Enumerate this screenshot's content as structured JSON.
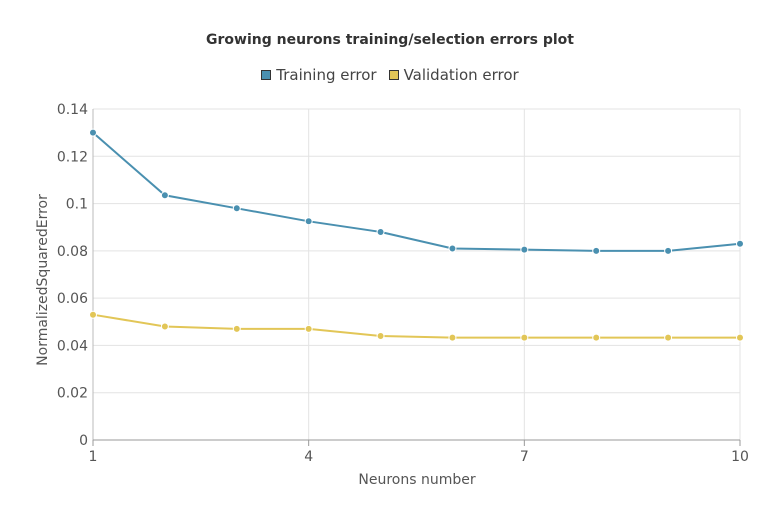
{
  "chart_data": {
    "type": "line",
    "title": "Growing neurons training/selection errors plot",
    "xlabel": "Neurons number",
    "ylabel": "NormalizedSquaredError",
    "x": [
      1,
      2,
      3,
      4,
      5,
      6,
      7,
      8,
      9,
      10
    ],
    "xlim": [
      1,
      10
    ],
    "ylim": [
      0,
      0.14
    ],
    "xticks": [
      "1",
      "4",
      "7",
      "10"
    ],
    "yticks": [
      "0",
      "0.02",
      "0.04",
      "0.06",
      "0.08",
      "0.1",
      "0.12",
      "0.14"
    ],
    "grid": true,
    "legend_position": "top-center",
    "series": [
      {
        "name": "Training error",
        "color": "#4a90b0",
        "values": [
          0.13,
          0.1035,
          0.098,
          0.0925,
          0.088,
          0.081,
          0.0805,
          0.08,
          0.08,
          0.083
        ]
      },
      {
        "name": "Validation error",
        "color": "#e2c657",
        "values": [
          0.053,
          0.048,
          0.047,
          0.047,
          0.044,
          0.0433,
          0.0433,
          0.0433,
          0.0433,
          0.0433
        ]
      }
    ]
  }
}
